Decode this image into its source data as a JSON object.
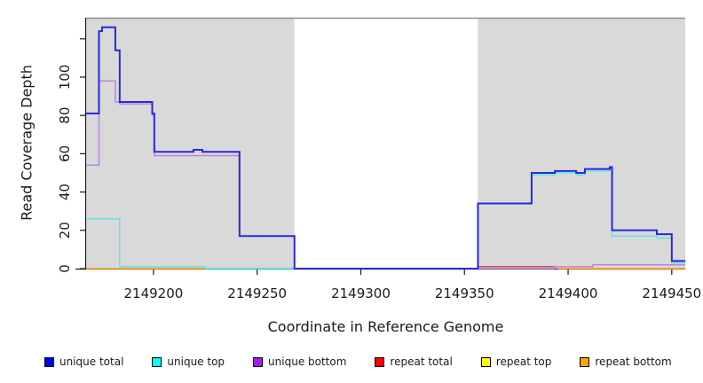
{
  "figure": {
    "background": "#ffffff"
  },
  "chart_data": {
    "type": "line",
    "subtype": "step-coverage-plot",
    "title": "",
    "xlabel": "Coordinate in Reference Genome",
    "ylabel": "Read Coverage Depth",
    "xlim": [
      2149167.5,
      2149456.5
    ],
    "ylim": [
      0,
      131
    ],
    "grid": false,
    "legend_position": "bottom",
    "x_ticks": [
      2149200,
      2149250,
      2149300,
      2149350,
      2149400,
      2149450
    ],
    "y_ticks": [
      0,
      20,
      40,
      60,
      80,
      100
    ],
    "y_ticks_unlabeled": [
      120
    ],
    "axis_color": "#1a1a1a",
    "plot_top_border_color": "#8e8e8e",
    "shaded_regions": [
      {
        "x0": 2149167.5,
        "x1": 2149268,
        "color": "#d9d9d9",
        "label": "repeat-region-left"
      },
      {
        "x0": 2149356.5,
        "x1": 2149456.5,
        "color": "#d9d9d9",
        "label": "repeat-region-right"
      }
    ],
    "series": [
      {
        "id": "repeat-total",
        "label": "repeat total",
        "stroke": "#C73E5C",
        "width": 1.4,
        "segments": [
          [
            [
              2149356.5,
              1
            ],
            [
              2149393.6,
              1
            ]
          ]
        ]
      },
      {
        "id": "repeat-bottom",
        "label": "repeat bottom",
        "stroke": "#FF9E1C",
        "width": 1.8,
        "segments": [
          [
            [
              2149167.5,
              0
            ],
            [
              2149224.8,
              0
            ]
          ],
          [
            [
              2149394.9,
              0
            ],
            [
              2149456.5,
              0
            ]
          ]
        ]
      },
      {
        "id": "repeat-top",
        "label": "repeat top",
        "note": "at depth 0, overlapping unique top: renders pale green",
        "stroke": "#7CCB7C",
        "width": 1.4,
        "segments": [
          [
            [
              2149224.8,
              0
            ],
            [
              2149268,
              0
            ]
          ]
        ]
      },
      {
        "id": "unique-top",
        "label": "unique top",
        "stroke": "#57E5E9",
        "width": 1.4,
        "points": [
          [
            2149167.5,
            26
          ],
          [
            2149183.7,
            1
          ],
          [
            2149224.8,
            0
          ],
          [
            2149356.5,
            34
          ],
          [
            2149382.4,
            49
          ],
          [
            2149393.6,
            50
          ],
          [
            2149403.9,
            49
          ],
          [
            2149408.1,
            51
          ],
          [
            2149420.1,
            52
          ],
          [
            2149421.2,
            17
          ],
          [
            2149442.8,
            16
          ],
          [
            2149450,
            3
          ]
        ]
      },
      {
        "id": "unique-bottom",
        "label": "unique bottom",
        "stroke": "#BC7BE8",
        "width": 1.4,
        "points": [
          [
            2149167.5,
            54
          ],
          [
            2149173.7,
            98
          ],
          [
            2149181.6,
            87
          ],
          [
            2149183.7,
            86
          ],
          [
            2149199.4,
            80
          ],
          [
            2149200.4,
            59
          ],
          [
            2149241.5,
            17
          ],
          [
            2149268,
            0
          ],
          [
            2149393.6,
            1
          ],
          [
            2149412,
            2
          ]
        ]
      },
      {
        "id": "unique-total",
        "label": "unique total",
        "stroke": "#2929E0",
        "width": 2,
        "points": [
          [
            2149167.5,
            81
          ],
          [
            2149173.7,
            124
          ],
          [
            2149175.2,
            126
          ],
          [
            2149181.6,
            114
          ],
          [
            2149183.7,
            87
          ],
          [
            2149199.4,
            81
          ],
          [
            2149200.4,
            61
          ],
          [
            2149219.3,
            62
          ],
          [
            2149223.6,
            61
          ],
          [
            2149241.5,
            17
          ],
          [
            2149268,
            0
          ],
          [
            2149356.5,
            34
          ],
          [
            2149382.4,
            50
          ],
          [
            2149393.6,
            51
          ],
          [
            2149403.9,
            50
          ],
          [
            2149408.1,
            52
          ],
          [
            2149420.1,
            53
          ],
          [
            2149421.2,
            20
          ],
          [
            2149442.8,
            18
          ],
          [
            2149450,
            4
          ]
        ]
      }
    ],
    "legend": {
      "entries": [
        {
          "label": "unique total",
          "color": "#0000FF"
        },
        {
          "label": "unique top",
          "color": "#00FFFF"
        },
        {
          "label": "unique bottom",
          "color": "#A020F0"
        },
        {
          "label": "repeat total",
          "color": "#FF0000"
        },
        {
          "label": "repeat top",
          "color": "#FFFF00"
        },
        {
          "label": "repeat bottom",
          "color": "#FFA500"
        }
      ]
    }
  }
}
